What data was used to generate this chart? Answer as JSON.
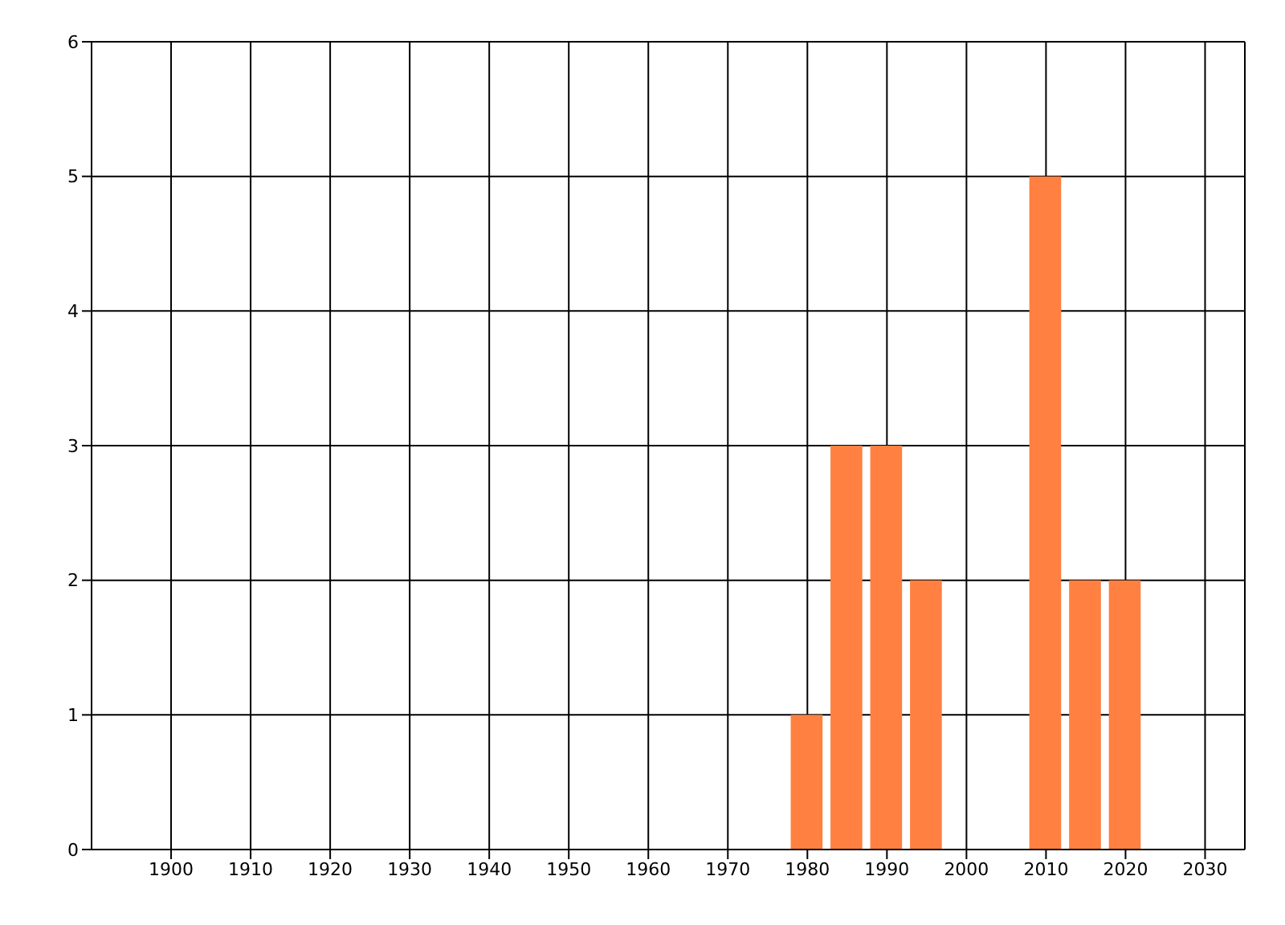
{
  "chart_data": {
    "type": "bar",
    "x": [
      1980,
      1985,
      1990,
      1995,
      2010,
      2015,
      2020
    ],
    "values": [
      1,
      3,
      3,
      2,
      5,
      2,
      2
    ],
    "color": "#ff8040",
    "xlim": [
      1890,
      2035
    ],
    "xticks": [
      1900,
      1910,
      1920,
      1930,
      1940,
      1950,
      1960,
      1970,
      1980,
      1990,
      2000,
      2010,
      2020,
      2030
    ],
    "ylim": [
      0,
      6
    ],
    "yticks": [
      0,
      1,
      2,
      3,
      4,
      5,
      6
    ],
    "grid": true
  }
}
